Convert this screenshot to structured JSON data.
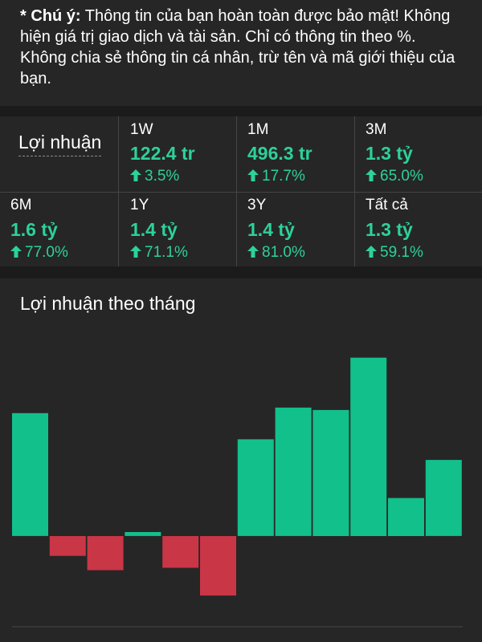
{
  "notice": {
    "lead": "* Chú ý:",
    "text": " Thông tin của bạn hoàn toàn được bảo mật! Không hiện giá trị giao dịch và tài sản. Chỉ có thông tin theo %. Không chia sẻ thông tin cá nhân, trừ tên và mã giới thiệu của bạn."
  },
  "stats": {
    "label": "Lợi nhuận",
    "periods": [
      {
        "period": "1W",
        "value": "122.4 tr",
        "change": "3.5%"
      },
      {
        "period": "1M",
        "value": "496.3 tr",
        "change": "17.7%"
      },
      {
        "period": "3M",
        "value": "1.3 tỷ",
        "change": "65.0%"
      },
      {
        "period": "6M",
        "value": "1.6 tỷ",
        "change": "77.0%"
      },
      {
        "period": "1Y",
        "value": "1.4 tỷ",
        "change": "71.1%"
      },
      {
        "period": "3Y",
        "value": "1.4 tỷ",
        "change": "81.0%"
      },
      {
        "period": "Tất cả",
        "value": "1.3 tỷ",
        "change": "59.1%"
      }
    ],
    "colors": {
      "positive": "#2dd19a",
      "grid": "#454545"
    }
  },
  "chart_title": "Lợi nhuận theo tháng",
  "chart_data": {
    "type": "bar",
    "values": [
      15.5,
      -2.5,
      -4.3,
      0.5,
      -4.0,
      -7.5,
      12.2,
      16.2,
      15.9,
      22.5,
      4.8,
      9.6
    ],
    "ylim": [
      -8,
      25
    ],
    "colors": {
      "positive": "#12c08b",
      "negative": "#c93646",
      "axis": "#454545"
    }
  }
}
